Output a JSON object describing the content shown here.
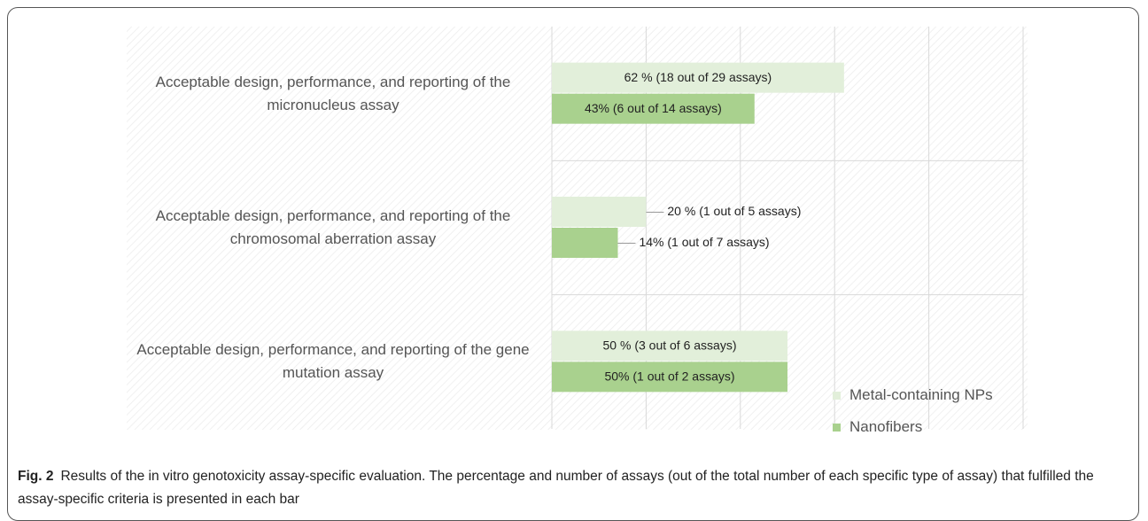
{
  "chart_data": {
    "type": "bar",
    "orientation": "horizontal",
    "categories": [
      "Acceptable design, performance, and reporting of the micronucleus assay",
      "Acceptable design, performance, and reporting of the chromosomal aberration assay",
      "Acceptable design, performance, and reporting of the gene mutation assay"
    ],
    "series": [
      {
        "name": "Metal-containing NPs",
        "color": "#e2efda",
        "values": [
          62,
          20,
          50
        ],
        "value_labels": [
          "62 % (18 out of 29 assays)",
          "20 % (1 out of 5 assays)",
          "50 % (3 out of 6 assays)"
        ]
      },
      {
        "name": "Nanofibers",
        "color": "#a9d18e",
        "values": [
          43,
          14,
          50
        ],
        "value_labels": [
          "43% (6 out of 14 assays)",
          "14% (1 out of 7 assays)",
          "50% (1 out of 2 assays)"
        ]
      }
    ],
    "xlim": [
      0,
      100
    ],
    "xticks": [
      0,
      20,
      40,
      60,
      80,
      100
    ],
    "grid": true,
    "legend": "lower right"
  },
  "caption": {
    "label": "Fig. 2",
    "text": "Results of the in vitro genotoxicity assay-specific evaluation. The percentage and number of assays (out of the total number of each specific type of assay) that fulfilled the assay-specific criteria is presented in each bar"
  }
}
